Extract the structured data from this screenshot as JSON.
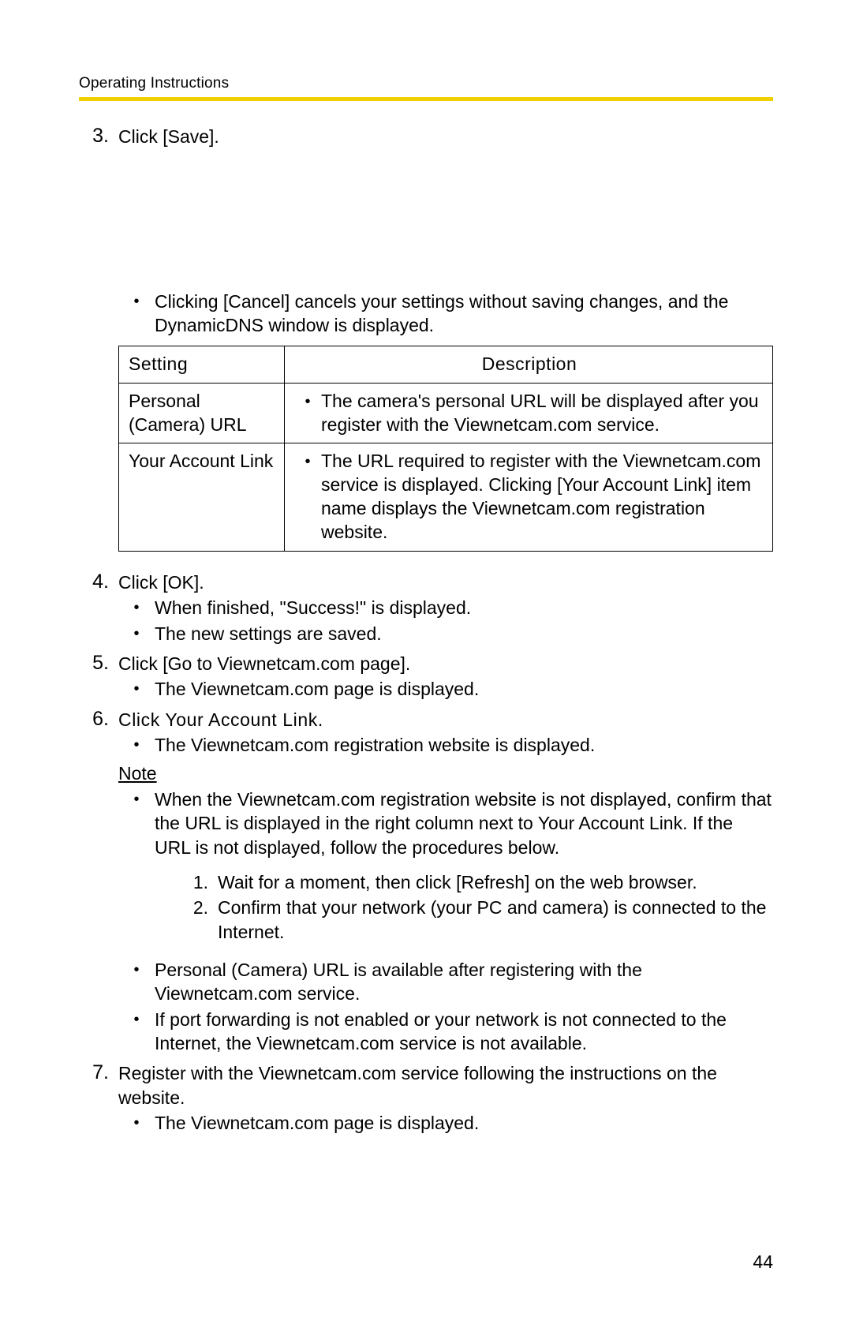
{
  "header": "Operating Instructions",
  "accent_color": "#f0d000",
  "page_number": "44",
  "steps": {
    "s3": {
      "num": "3.",
      "text": "Click [Save]."
    },
    "s3_bullet": "Clicking [Cancel] cancels your settings without saving changes, and the DynamicDNS window is displayed.",
    "s4": {
      "num": "4.",
      "text": "Click [OK]."
    },
    "s4_b1": "When finished, \"Success!\" is displayed.",
    "s4_b2": "The new settings are saved.",
    "s5": {
      "num": "5.",
      "text": "Click [Go to Viewnetcam.com page]."
    },
    "s5_b1": "The Viewnetcam.com page is displayed.",
    "s6": {
      "num": "6.",
      "text": "Click Your Account Link."
    },
    "s6_b1": "The Viewnetcam.com registration website is displayed.",
    "note_label": "Note",
    "note_b1": "When the Viewnetcam.com registration website is not displayed, confirm that the URL is displayed in the right column next to Your Account Link. If the URL is not displayed, follow the procedures below.",
    "note_ol1": {
      "num": "1.",
      "text": "Wait for a moment, then click [Refresh] on the web browser."
    },
    "note_ol2": {
      "num": "2.",
      "text": "Confirm that your network (your PC and camera) is connected to the Internet."
    },
    "note_b2": "Personal (Camera) URL is available after registering with the Viewnetcam.com service.",
    "note_b3": "If port forwarding is not enabled or your network is not connected to the Internet, the Viewnetcam.com service is not available.",
    "s7": {
      "num": "7.",
      "text": "Register with the Viewnetcam.com service following the instructions on the website."
    },
    "s7_b1": "The Viewnetcam.com page is displayed."
  },
  "table": {
    "header_setting": "Setting",
    "header_desc": "Description",
    "row1_setting": "Personal (Camera) URL",
    "row1_desc": "The camera's personal URL will be displayed after you register with the Viewnetcam.com service.",
    "row2_setting": "Your Account Link",
    "row2_desc": "The URL required to register with the Viewnetcam.com service is displayed. Clicking [Your Account Link] item name displays the Viewnetcam.com registration website."
  }
}
